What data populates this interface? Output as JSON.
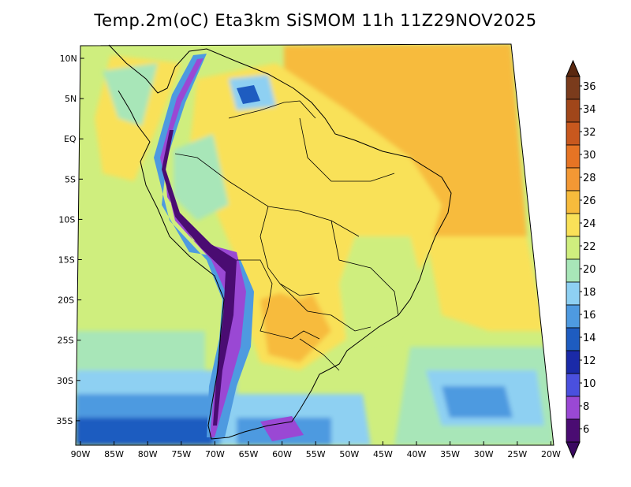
{
  "title": "Temp.2m(oC) Eta3km SiSMOM 11h 11Z29NOV2025",
  "lat_labels": [
    "10N",
    "5N",
    "EQ",
    "5S",
    "10S",
    "15S",
    "20S",
    "25S",
    "30S",
    "35S"
  ],
  "lon_labels": [
    "90W",
    "85W",
    "80W",
    "75W",
    "70W",
    "65W",
    "60W",
    "55W",
    "50W",
    "45W",
    "40W",
    "35W",
    "30W",
    "25W",
    "20W"
  ],
  "colorbar": {
    "labels": [
      "36",
      "34",
      "32",
      "30",
      "28",
      "26",
      "24",
      "22",
      "20",
      "18",
      "16",
      "14",
      "12",
      "10",
      "8",
      "6"
    ],
    "colors": [
      "#7a3b1c",
      "#a0461a",
      "#c8581e",
      "#e67424",
      "#f39834",
      "#f7bb3c",
      "#f9e158",
      "#cfee7e",
      "#a8e6b8",
      "#8ed0f2",
      "#4e9ae0",
      "#1e5cc0",
      "#1a2aa8",
      "#4a50de",
      "#9a48d4",
      "#4a0c72"
    ],
    "top_arrow_color": "#5a2810",
    "bottom_arrow_color": "#3a0860"
  }
}
